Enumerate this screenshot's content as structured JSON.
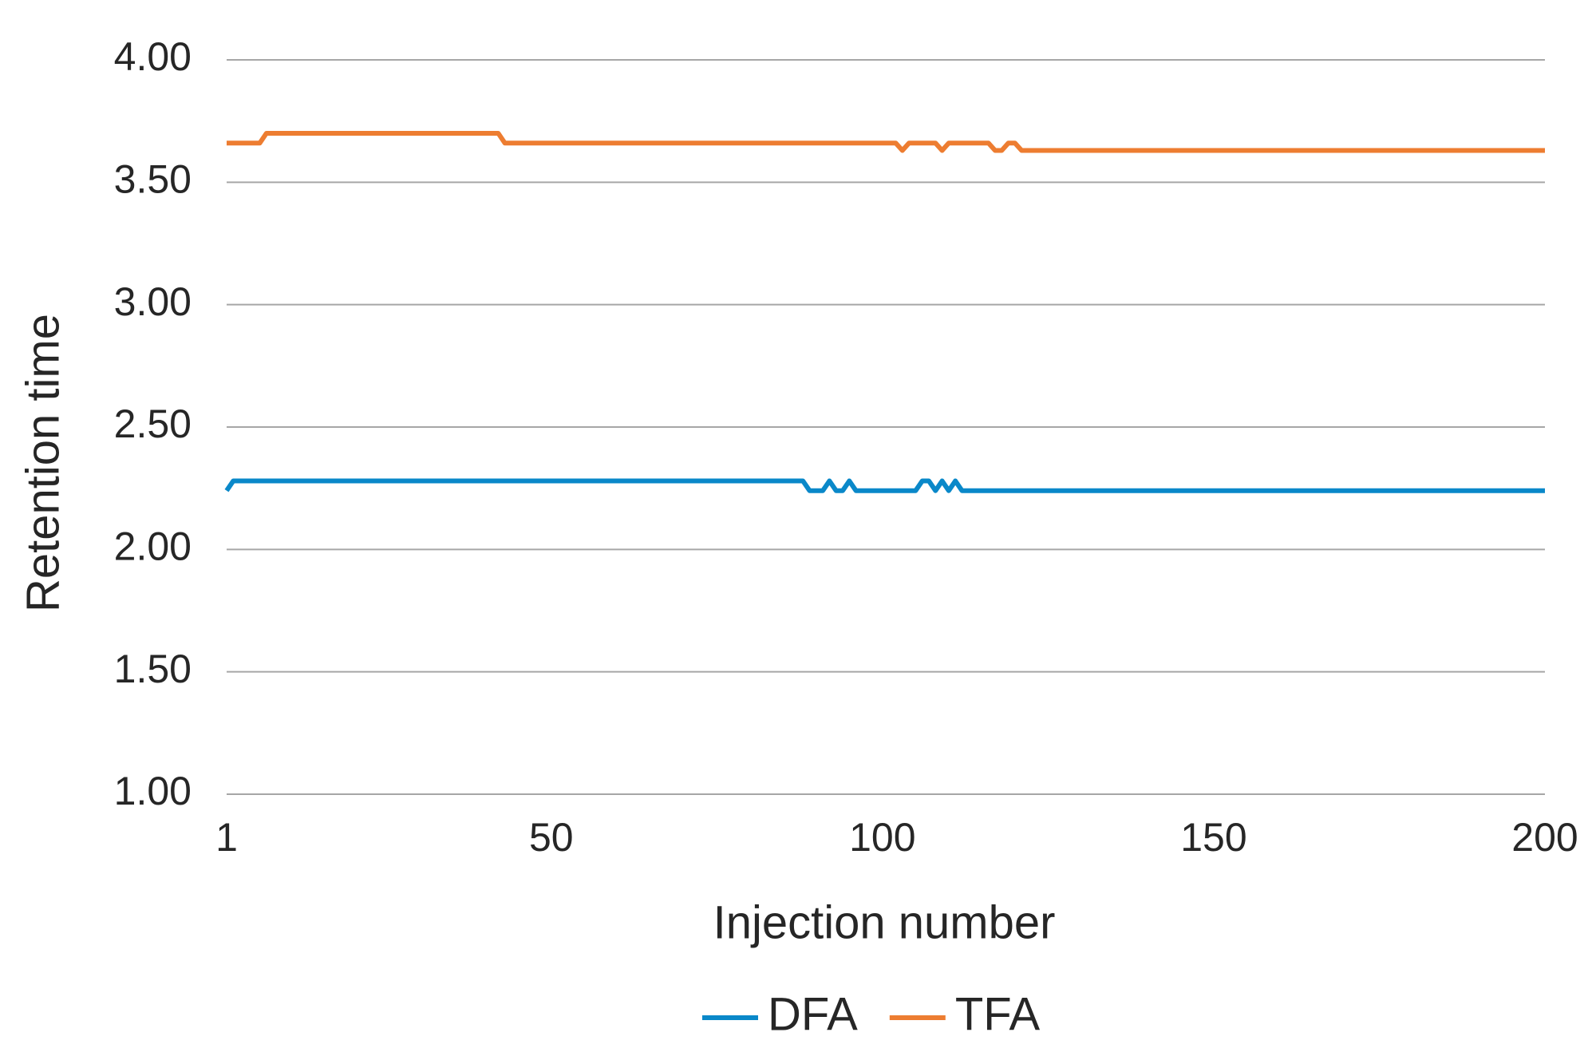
{
  "chart_data": {
    "type": "line",
    "x_label": "Injection number",
    "y_label": "Retention time",
    "xlim": [
      1,
      200
    ],
    "xticks": [
      1,
      50,
      100,
      150,
      200
    ],
    "ylim": [
      1,
      4
    ],
    "yticks": [
      {
        "value": 1,
        "label": "1.00"
      },
      {
        "value": 1.5,
        "label": "1.50"
      },
      {
        "value": 2,
        "label": "2.00"
      },
      {
        "value": 2.5,
        "label": "2.50"
      },
      {
        "value": 3,
        "label": "3.00"
      },
      {
        "value": 3.5,
        "label": "3.50"
      },
      {
        "value": 4,
        "label": "4.00"
      }
    ],
    "grid": true,
    "legend": "bottom",
    "series": [
      {
        "name": "DFA",
        "color": "#0a88c9",
        "x": [
          1,
          2,
          88,
          89,
          91,
          92,
          93,
          94,
          95,
          96,
          105,
          106,
          107,
          108,
          109,
          110,
          111,
          112,
          200
        ],
        "values": [
          2.24,
          2.28,
          2.28,
          2.24,
          2.24,
          2.28,
          2.24,
          2.24,
          2.28,
          2.24,
          2.24,
          2.28,
          2.28,
          2.24,
          2.28,
          2.24,
          2.28,
          2.24,
          2.24
        ]
      },
      {
        "name": "TFA",
        "color": "#ed7d31",
        "x": [
          1,
          6,
          7,
          42,
          43,
          102,
          103,
          104,
          108,
          109,
          110,
          116,
          117,
          118,
          119,
          120,
          121,
          200
        ],
        "values": [
          3.66,
          3.66,
          3.7,
          3.7,
          3.66,
          3.66,
          3.63,
          3.66,
          3.66,
          3.63,
          3.66,
          3.66,
          3.63,
          3.63,
          3.66,
          3.66,
          3.63,
          3.63
        ]
      }
    ]
  }
}
